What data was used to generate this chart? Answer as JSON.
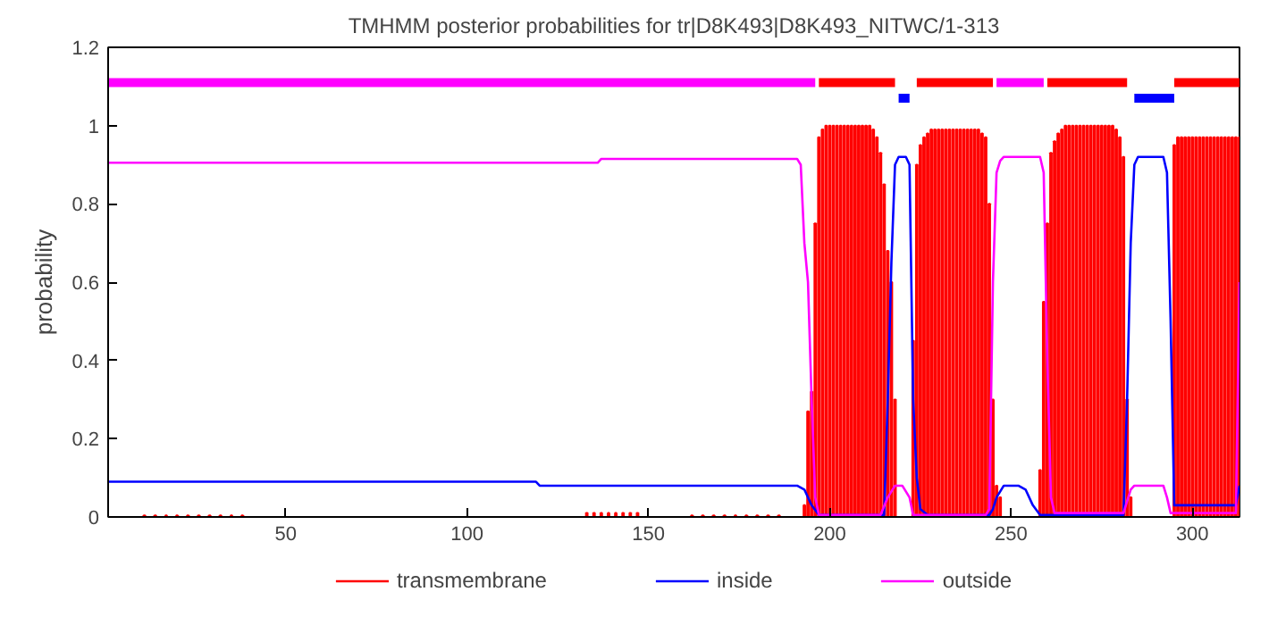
{
  "chart_data": {
    "type": "line",
    "title": "TMHMM posterior probabilities for tr|D8K493|D8K493_NITWC/1-313",
    "ylabel": "probability",
    "xlim": [
      1,
      313
    ],
    "ylim": [
      0,
      1.2
    ],
    "xticks": [
      50,
      100,
      150,
      200,
      250,
      300
    ],
    "yticks": [
      0,
      0.2,
      0.4,
      0.6,
      0.8,
      1,
      1.2
    ],
    "grid": false,
    "legend": "bottom",
    "marker": "none",
    "line_style": "solid",
    "series": [
      {
        "name": "transmembrane",
        "type": "bar",
        "color": "#ff0000",
        "x": [
          11,
          14,
          17,
          20,
          23,
          26,
          29,
          32,
          35,
          38,
          133,
          135,
          137,
          139,
          141,
          143,
          145,
          147,
          162,
          165,
          168,
          171,
          174,
          177,
          180,
          183,
          186,
          193,
          194,
          195,
          196,
          197,
          198,
          199,
          200,
          201,
          202,
          203,
          204,
          205,
          206,
          207,
          208,
          209,
          210,
          211,
          212,
          213,
          214,
          215,
          216,
          217,
          218,
          223,
          224,
          225,
          226,
          227,
          228,
          229,
          230,
          231,
          232,
          233,
          234,
          235,
          236,
          237,
          238,
          239,
          240,
          241,
          242,
          243,
          244,
          245,
          246,
          247,
          258,
          259,
          260,
          261,
          262,
          263,
          264,
          265,
          266,
          267,
          268,
          269,
          270,
          271,
          272,
          273,
          274,
          275,
          276,
          277,
          278,
          279,
          280,
          281,
          282,
          283,
          295,
          296,
          297,
          298,
          299,
          300,
          301,
          302,
          303,
          304,
          305,
          306,
          307,
          308,
          309,
          310,
          311,
          312,
          313
        ],
        "values": [
          0.004,
          0.004,
          0.004,
          0.004,
          0.004,
          0.004,
          0.004,
          0.004,
          0.004,
          0.004,
          0.01,
          0.01,
          0.01,
          0.01,
          0.01,
          0.01,
          0.01,
          0.01,
          0.004,
          0.004,
          0.004,
          0.004,
          0.004,
          0.004,
          0.004,
          0.004,
          0.004,
          0.03,
          0.27,
          0.32,
          0.75,
          0.97,
          0.99,
          1.0,
          1.0,
          1.0,
          1.0,
          1.0,
          1.0,
          1.0,
          1.0,
          1.0,
          1.0,
          1.0,
          1.0,
          1.0,
          0.99,
          0.97,
          0.93,
          0.85,
          0.68,
          0.6,
          0.3,
          0.45,
          0.9,
          0.95,
          0.97,
          0.98,
          0.99,
          0.99,
          0.99,
          0.99,
          0.99,
          0.99,
          0.99,
          0.99,
          0.99,
          0.99,
          0.99,
          0.99,
          0.99,
          0.99,
          0.98,
          0.97,
          0.8,
          0.3,
          0.08,
          0.05,
          0.12,
          0.55,
          0.75,
          0.93,
          0.96,
          0.98,
          0.99,
          1.0,
          1.0,
          1.0,
          1.0,
          1.0,
          1.0,
          1.0,
          1.0,
          1.0,
          1.0,
          1.0,
          1.0,
          1.0,
          1.0,
          0.99,
          0.97,
          0.92,
          0.3,
          0.05,
          0.95,
          0.97,
          0.97,
          0.97,
          0.97,
          0.97,
          0.97,
          0.97,
          0.97,
          0.97,
          0.97,
          0.97,
          0.97,
          0.97,
          0.97,
          0.97,
          0.97,
          0.97,
          0.97
        ]
      },
      {
        "name": "inside",
        "color": "#0000ff",
        "x": [
          1,
          119,
          120,
          191,
          193,
          195,
          197,
          215,
          216,
          217,
          218,
          219,
          221,
          222,
          223,
          224,
          225,
          227,
          244,
          245,
          246,
          248,
          252,
          254,
          256,
          258,
          281,
          282,
          283,
          284,
          285,
          292,
          293,
          294,
          295,
          312,
          313
        ],
        "values": [
          0.09,
          0.09,
          0.08,
          0.08,
          0.07,
          0.03,
          0.005,
          0.005,
          0.3,
          0.65,
          0.9,
          0.92,
          0.92,
          0.9,
          0.3,
          0.1,
          0.02,
          0.005,
          0.005,
          0.02,
          0.05,
          0.08,
          0.08,
          0.07,
          0.03,
          0.005,
          0.005,
          0.3,
          0.7,
          0.9,
          0.92,
          0.92,
          0.88,
          0.5,
          0.03,
          0.03,
          0.08
        ]
      },
      {
        "name": "outside",
        "color": "#ff00ff",
        "x": [
          1,
          136,
          137,
          191,
          192,
          193,
          194,
          195,
          196,
          197,
          214,
          216,
          218,
          220,
          222,
          223,
          243,
          244,
          245,
          246,
          247,
          248,
          258,
          259,
          260,
          261,
          262,
          281,
          282,
          283,
          284,
          292,
          293,
          294,
          312,
          313
        ],
        "values": [
          0.905,
          0.905,
          0.915,
          0.915,
          0.9,
          0.7,
          0.6,
          0.3,
          0.05,
          0.005,
          0.005,
          0.05,
          0.08,
          0.08,
          0.05,
          0.005,
          0.005,
          0.02,
          0.6,
          0.88,
          0.91,
          0.92,
          0.92,
          0.88,
          0.4,
          0.05,
          0.01,
          0.01,
          0.04,
          0.07,
          0.08,
          0.08,
          0.05,
          0.01,
          0.01,
          0.6
        ]
      },
      {
        "color": "#ff00ff",
        "x": [
          1,
          196,
          220,
          246,
          259
        ],
        "values": [
          1.11,
          1.11,
          null,
          1.11,
          1.11
        ]
      },
      {
        "color": "#0000ff",
        "x": [
          219,
          222,
          250,
          284,
          295
        ],
        "values": [
          1.07,
          1.07,
          null,
          1.07,
          1.07
        ]
      },
      {
        "color": "#ff0000",
        "x": [
          197,
          218,
          220,
          224,
          245,
          250,
          260,
          282,
          290,
          295,
          313
        ],
        "values": [
          1.11,
          1.11,
          null,
          1.11,
          1.11,
          null,
          1.11,
          1.11,
          null,
          1.11,
          1.11
        ]
      }
    ]
  }
}
